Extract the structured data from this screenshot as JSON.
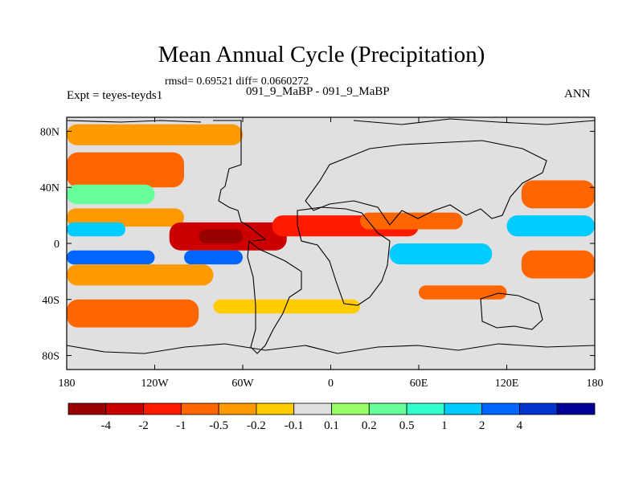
{
  "title": "Mean Annual Cycle (Precipitation)",
  "stats": "rmsd= 0.69521 diff= 0.0660272",
  "left_label": "Expt = teyes-teyds1",
  "center_label": "091_9_MaBP - 091_9_MaBP",
  "right_label": "ANN",
  "chart_data": {
    "type": "heatmap",
    "title": "Mean Annual Cycle (Precipitation)",
    "subtitle": "091_9_MaBP - 091_9_MaBP",
    "x_ticks": [
      "180",
      "120W",
      "60W",
      "0",
      "60E",
      "120E",
      "180"
    ],
    "x_tick_values": [
      -180,
      -120,
      -60,
      0,
      60,
      120,
      180
    ],
    "y_ticks": [
      "80N",
      "40N",
      "0",
      "40S",
      "80S"
    ],
    "y_tick_values": [
      80,
      40,
      0,
      -40,
      -80
    ],
    "xlim": [
      -180,
      180
    ],
    "ylim": [
      -90,
      90
    ],
    "colorbar": {
      "colors": [
        "#990000",
        "#cc0000",
        "#ff1a00",
        "#ff6600",
        "#ff9900",
        "#ffcc00",
        "#e0e0e0",
        "#99ff66",
        "#66ff99",
        "#33ffcc",
        "#00ccff",
        "#0066ff",
        "#0033cc",
        "#000099"
      ],
      "labels": [
        "-4",
        "-2",
        "-1",
        "-0.5",
        "-0.2",
        "-0.1",
        "0.1",
        "0.2",
        "0.5",
        "1",
        "2",
        "4"
      ]
    },
    "bands": [
      {
        "lat": [
          70,
          85
        ],
        "lon": [
          -180,
          -60
        ],
        "level": 4
      },
      {
        "lat": [
          40,
          65
        ],
        "lon": [
          -180,
          -100
        ],
        "level": 3
      },
      {
        "lat": [
          28,
          42
        ],
        "lon": [
          -180,
          -120
        ],
        "level": 8
      },
      {
        "lat": [
          12,
          25
        ],
        "lon": [
          -180,
          -100
        ],
        "level": 4
      },
      {
        "lat": [
          5,
          15
        ],
        "lon": [
          -180,
          -140
        ],
        "level": 10
      },
      {
        "lat": [
          -5,
          15
        ],
        "lon": [
          -110,
          -30
        ],
        "level": 1
      },
      {
        "lat": [
          0,
          10
        ],
        "lon": [
          -90,
          -60
        ],
        "level": 0
      },
      {
        "lat": [
          5,
          20
        ],
        "lon": [
          -40,
          60
        ],
        "level": 2
      },
      {
        "lat": [
          10,
          22
        ],
        "lon": [
          20,
          90
        ],
        "level": 3
      },
      {
        "lat": [
          -15,
          -5
        ],
        "lon": [
          -180,
          -120
        ],
        "level": 11
      },
      {
        "lat": [
          -15,
          -5
        ],
        "lon": [
          -100,
          -60
        ],
        "level": 11
      },
      {
        "lat": [
          -30,
          -15
        ],
        "lon": [
          -180,
          -80
        ],
        "level": 4
      },
      {
        "lat": [
          -60,
          -40
        ],
        "lon": [
          -180,
          -90
        ],
        "level": 3
      },
      {
        "lat": [
          -50,
          -40
        ],
        "lon": [
          -80,
          20
        ],
        "level": 5
      },
      {
        "lat": [
          -15,
          0
        ],
        "lon": [
          40,
          110
        ],
        "level": 10
      },
      {
        "lat": [
          -40,
          -30
        ],
        "lon": [
          60,
          120
        ],
        "level": 3
      },
      {
        "lat": [
          25,
          45
        ],
        "lon": [
          130,
          180
        ],
        "level": 3
      },
      {
        "lat": [
          5,
          20
        ],
        "lon": [
          120,
          180
        ],
        "level": 10
      },
      {
        "lat": [
          -25,
          -5
        ],
        "lon": [
          130,
          180
        ],
        "level": 3
      }
    ]
  }
}
